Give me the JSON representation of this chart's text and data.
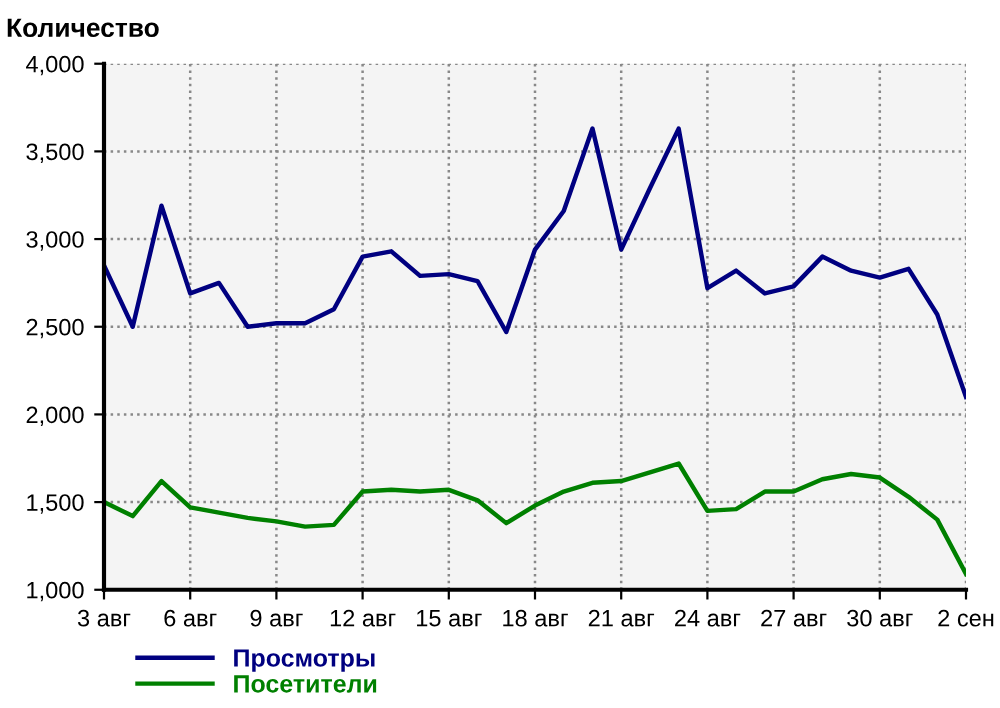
{
  "chart_data": {
    "type": "line",
    "ylabel": "Количество",
    "categories": [
      "3 авг",
      null,
      null,
      "6 авг",
      null,
      null,
      "9 авг",
      null,
      null,
      "12 авг",
      null,
      null,
      "15 авг",
      null,
      null,
      "18 авг",
      null,
      null,
      "21 авг",
      null,
      null,
      "24 авг",
      null,
      null,
      "27 авг",
      null,
      null,
      "30 авг",
      null,
      null,
      "2 сен"
    ],
    "series": [
      {
        "name": "Просмотры",
        "color": "#000080",
        "values": [
          2850,
          2500,
          3190,
          2690,
          2750,
          2500,
          2520,
          2520,
          2600,
          2900,
          2930,
          2790,
          2800,
          2760,
          2470,
          2940,
          3160,
          3630,
          2940,
          3290,
          3630,
          2720,
          2820,
          2690,
          2730,
          2900,
          2820,
          2780,
          2830,
          2570,
          2100
        ]
      },
      {
        "name": "Посетители",
        "color": "#008000",
        "values": [
          1500,
          1420,
          1620,
          1470,
          1440,
          1410,
          1390,
          1360,
          1370,
          1560,
          1570,
          1560,
          1570,
          1510,
          1380,
          1480,
          1560,
          1610,
          1620,
          1670,
          1720,
          1450,
          1460,
          1560,
          1560,
          1630,
          1660,
          1640,
          1530,
          1400,
          1090
        ]
      }
    ],
    "ylim": [
      1000,
      4000
    ],
    "yticks": [
      {
        "value": 1000,
        "label": "1,000"
      },
      {
        "value": 1500,
        "label": "1,500"
      },
      {
        "value": 2000,
        "label": "2,000"
      },
      {
        "value": 2500,
        "label": "2,500"
      },
      {
        "value": 3000,
        "label": "3,000"
      },
      {
        "value": 3500,
        "label": "3,500"
      },
      {
        "value": 4000,
        "label": "4,000"
      }
    ],
    "grid": true,
    "legend": "bottom left",
    "line_style": "solid"
  }
}
